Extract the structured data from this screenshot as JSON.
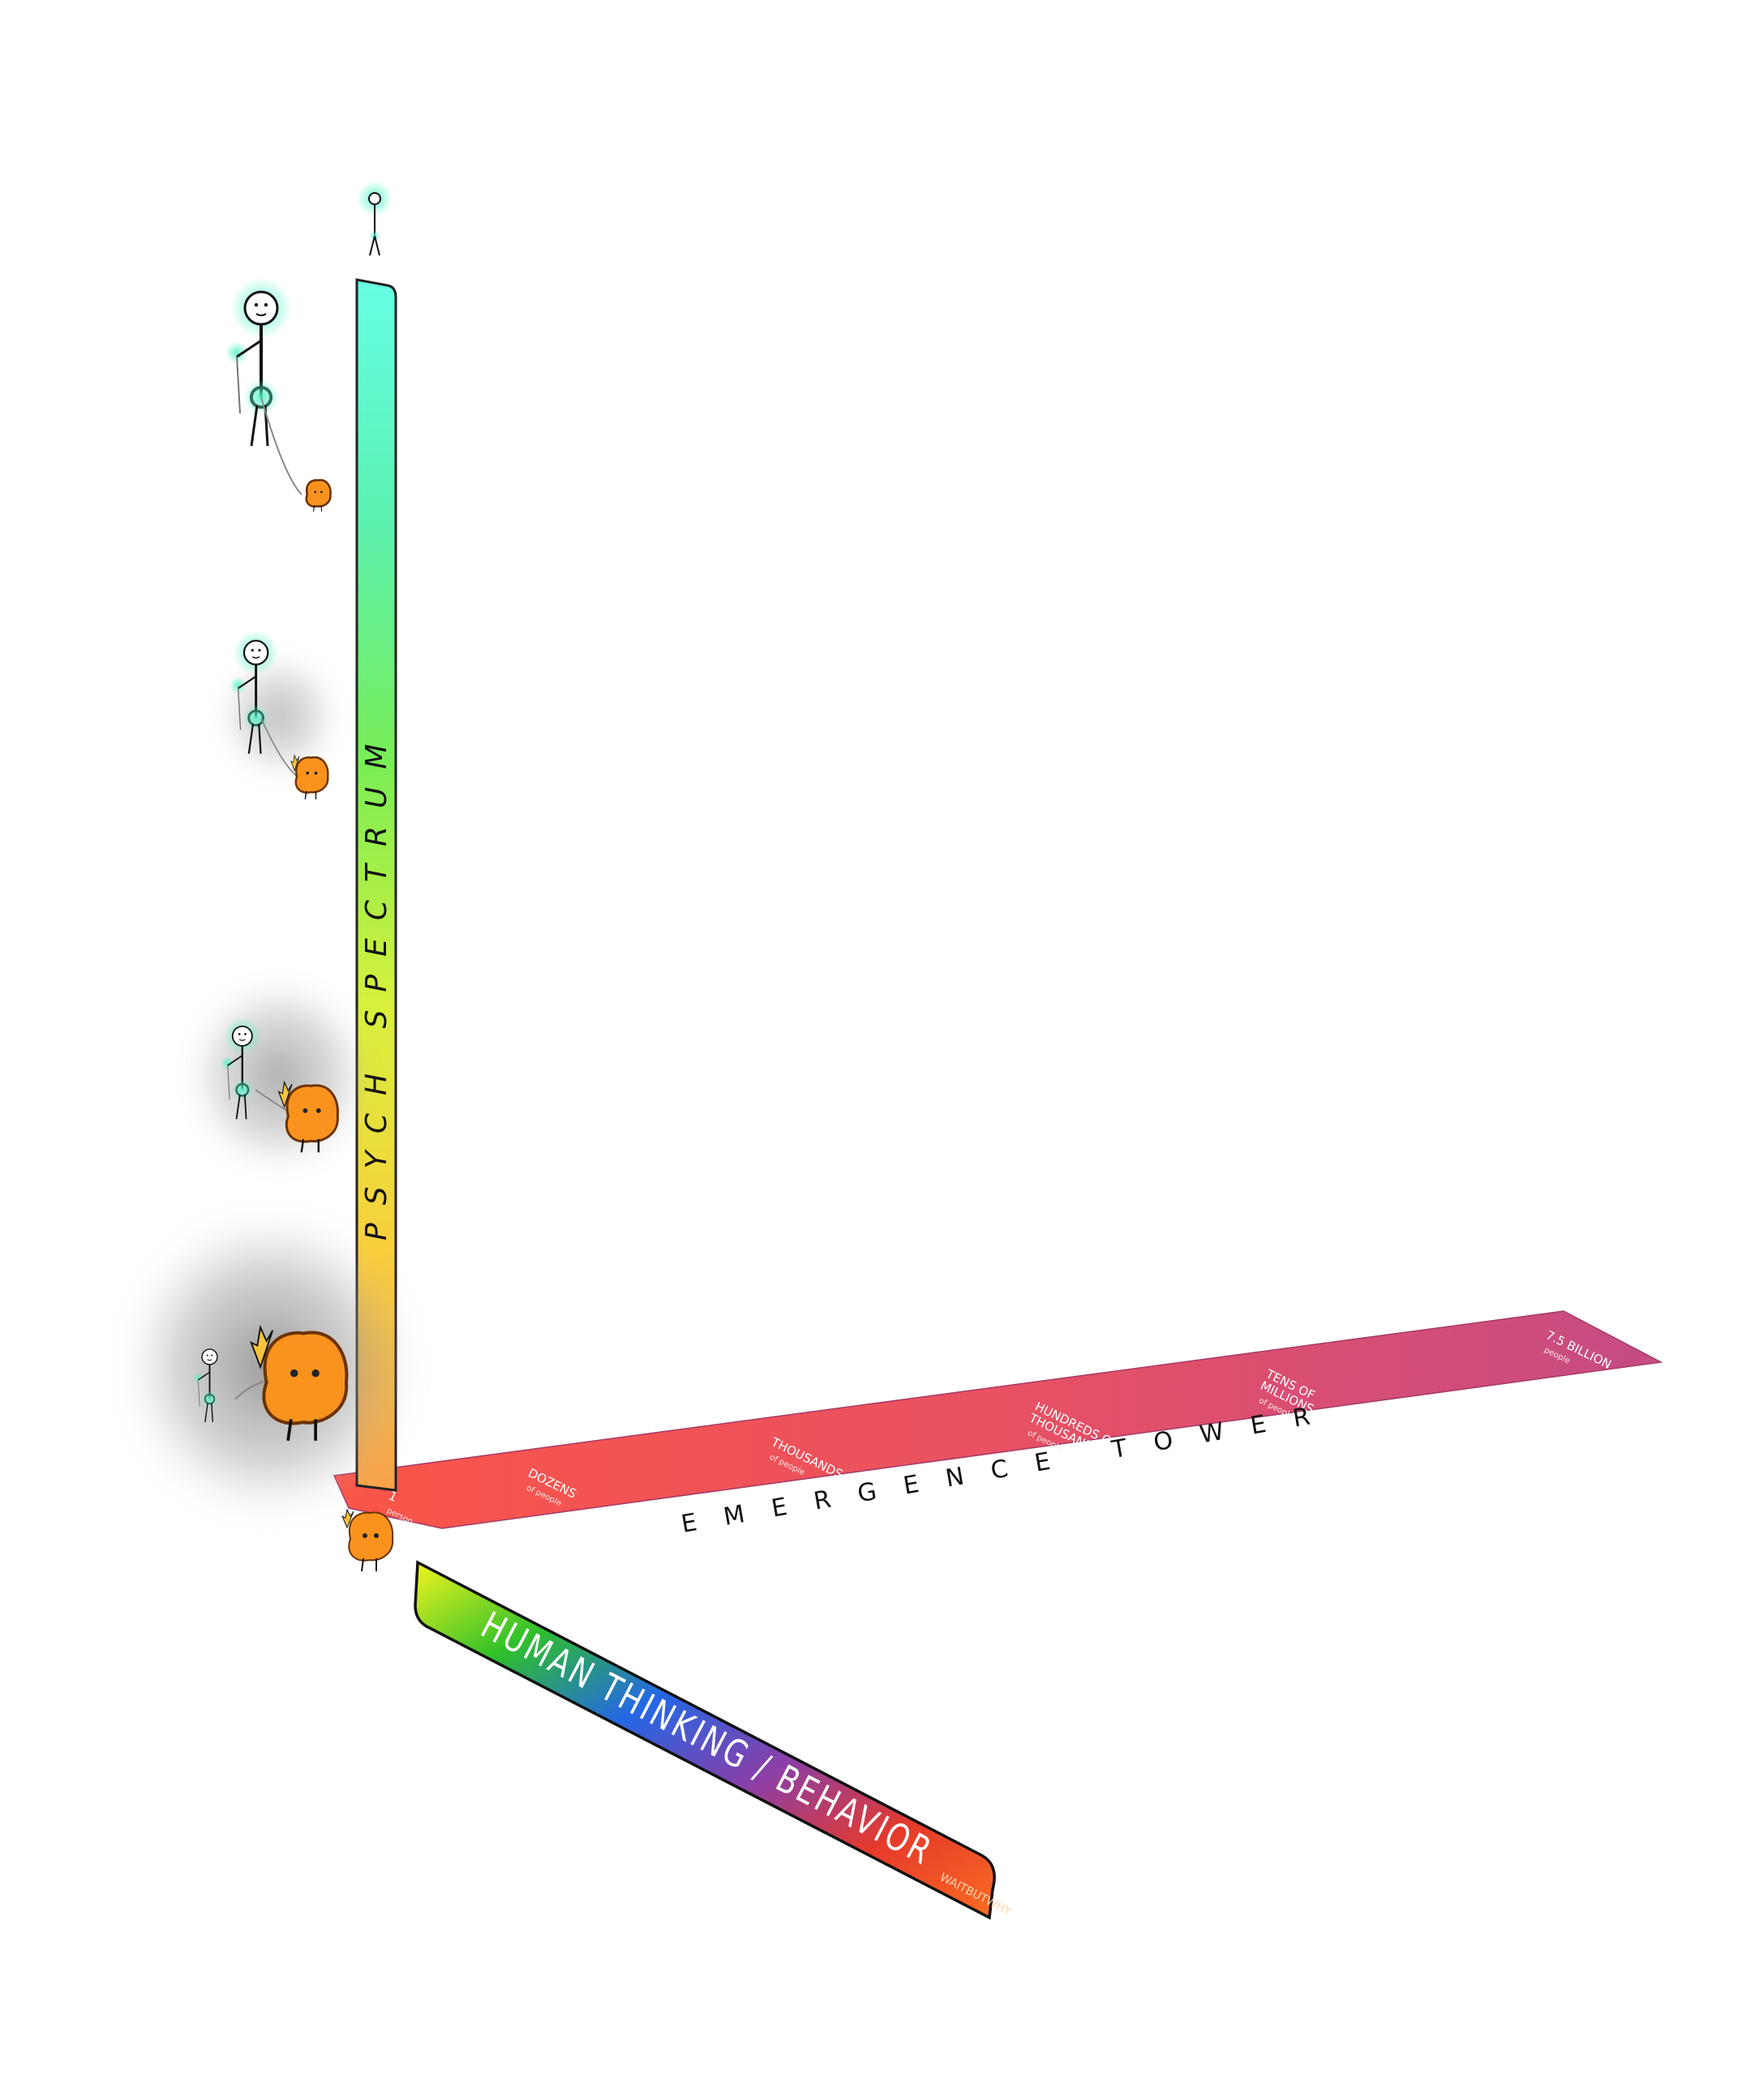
{
  "axes": {
    "vertical": {
      "label": "PSYCH SPECTRUM",
      "gradient": [
        "#66ffe6",
        "#5cf0b0",
        "#79ee55",
        "#d8f03c",
        "#f8cf3c",
        "#f9a24a"
      ]
    },
    "horizontal": {
      "label": "EMERGENCE TOWER",
      "gradient": [
        "#fa4c3e",
        "#e8485a",
        "#c3427e"
      ],
      "ticks": [
        {
          "main": "1",
          "sub": "person"
        },
        {
          "main": "DOZENS",
          "sub": "of people"
        },
        {
          "main": "THOUSANDS",
          "sub": "of people"
        },
        {
          "main": "HUNDREDS OF",
          "main2": "THOUSANDS",
          "sub": "of people"
        },
        {
          "main": "TENS OF",
          "main2": "MILLIONS",
          "sub": "of people"
        },
        {
          "main": "7.5 BILLION",
          "sub": "people"
        }
      ]
    },
    "depth": {
      "label": "HUMAN THINKING / BEHAVIOR",
      "gradient": [
        "#f2f51e",
        "#2fc02a",
        "#2467e6",
        "#8a3fa8",
        "#e63a2a",
        "#f96d22"
      ],
      "credit": "WAITBUTWHY"
    }
  },
  "colors": {
    "monkey": "#f9931e",
    "monkey_outline": "#6b3200",
    "glow": "#55f5c9",
    "fog": "#8a8a8a",
    "stroke": "#111111"
  },
  "figures": [
    {
      "name": "figure-level-top",
      "fog": 0.0
    },
    {
      "name": "figure-level-high",
      "fog": 0.25
    },
    {
      "name": "figure-level-mid",
      "fog": 0.6
    },
    {
      "name": "figure-level-low",
      "fog": 1.0
    }
  ]
}
